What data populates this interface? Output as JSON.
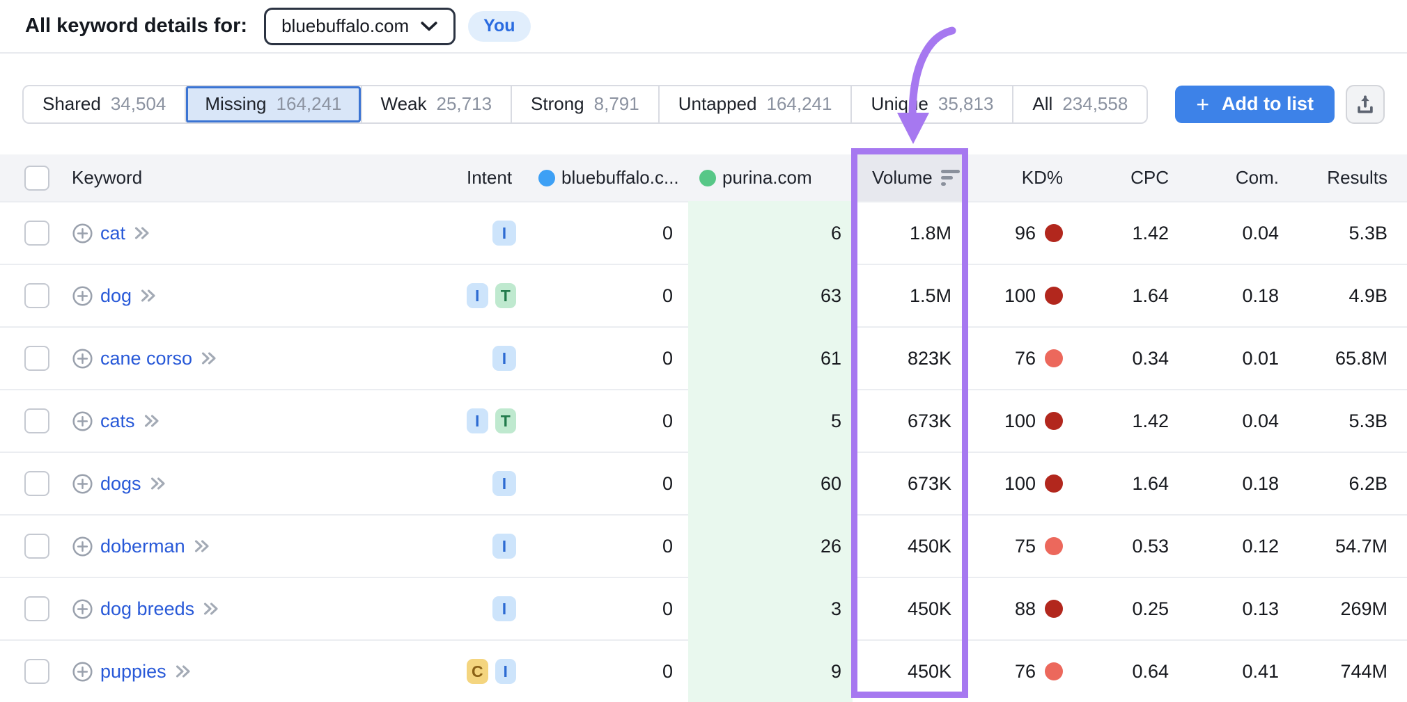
{
  "header": {
    "title": "All keyword details for:",
    "domain": "bluebuffalo.com",
    "you_badge": "You"
  },
  "toolbar": {
    "tabs": [
      {
        "label": "Shared",
        "count": "34,504",
        "active": false
      },
      {
        "label": "Missing",
        "count": "164,241",
        "active": true
      },
      {
        "label": "Weak",
        "count": "25,713",
        "active": false
      },
      {
        "label": "Strong",
        "count": "8,791",
        "active": false
      },
      {
        "label": "Untapped",
        "count": "164,241",
        "active": false
      },
      {
        "label": "Unique",
        "count": "35,813",
        "active": false
      },
      {
        "label": "All",
        "count": "234,558",
        "active": false
      }
    ],
    "add_to_list": {
      "plus": "+",
      "label": "Add to list"
    },
    "export_icon": "upload-icon"
  },
  "table": {
    "header": {
      "keyword": "Keyword",
      "intent": "Intent",
      "site1": "bluebuffalo.c...",
      "site2": "purina.com",
      "volume": "Volume",
      "kd": "KD%",
      "cpc": "CPC",
      "com": "Com.",
      "results": "Results"
    },
    "site1_dot_color": "#3da0f5",
    "site2_dot_color": "#57c787",
    "site2_column_bg": "#e9f8ee",
    "intent_styles": {
      "I": {
        "bg": "#cde4fb",
        "fg": "#2d6bd2"
      },
      "T": {
        "bg": "#bfe9cf",
        "fg": "#217a4b"
      },
      "C": {
        "bg": "#f4d57f",
        "fg": "#8a6116"
      }
    },
    "rows": [
      {
        "keyword": "cat",
        "intents": [
          "I"
        ],
        "site1": "0",
        "site2": "6",
        "volume": "1.8M",
        "kd": "96",
        "kd_color": "#b2271d",
        "cpc": "1.42",
        "com": "0.04",
        "results": "5.3B"
      },
      {
        "keyword": "dog",
        "intents": [
          "I",
          "T"
        ],
        "site1": "0",
        "site2": "63",
        "volume": "1.5M",
        "kd": "100",
        "kd_color": "#b2271d",
        "cpc": "1.64",
        "com": "0.18",
        "results": "4.9B"
      },
      {
        "keyword": "cane corso",
        "intents": [
          "I"
        ],
        "site1": "0",
        "site2": "61",
        "volume": "823K",
        "kd": "76",
        "kd_color": "#ec685c",
        "cpc": "0.34",
        "com": "0.01",
        "results": "65.8M"
      },
      {
        "keyword": "cats",
        "intents": [
          "I",
          "T"
        ],
        "site1": "0",
        "site2": "5",
        "volume": "673K",
        "kd": "100",
        "kd_color": "#b2271d",
        "cpc": "1.42",
        "com": "0.04",
        "results": "5.3B"
      },
      {
        "keyword": "dogs",
        "intents": [
          "I"
        ],
        "site1": "0",
        "site2": "60",
        "volume": "673K",
        "kd": "100",
        "kd_color": "#b2271d",
        "cpc": "1.64",
        "com": "0.18",
        "results": "6.2B"
      },
      {
        "keyword": "doberman",
        "intents": [
          "I"
        ],
        "site1": "0",
        "site2": "26",
        "volume": "450K",
        "kd": "75",
        "kd_color": "#ec685c",
        "cpc": "0.53",
        "com": "0.12",
        "results": "54.7M"
      },
      {
        "keyword": "dog breeds",
        "intents": [
          "I"
        ],
        "site1": "0",
        "site2": "3",
        "volume": "450K",
        "kd": "88",
        "kd_color": "#b2271d",
        "cpc": "0.25",
        "com": "0.13",
        "results": "269M"
      },
      {
        "keyword": "puppies",
        "intents": [
          "C",
          "I"
        ],
        "site1": "0",
        "site2": "9",
        "volume": "450K",
        "kd": "76",
        "kd_color": "#ec685c",
        "cpc": "0.64",
        "com": "0.41",
        "results": "744M"
      }
    ]
  },
  "annotation": {
    "color": "#a678f0",
    "target": "volume-column"
  }
}
